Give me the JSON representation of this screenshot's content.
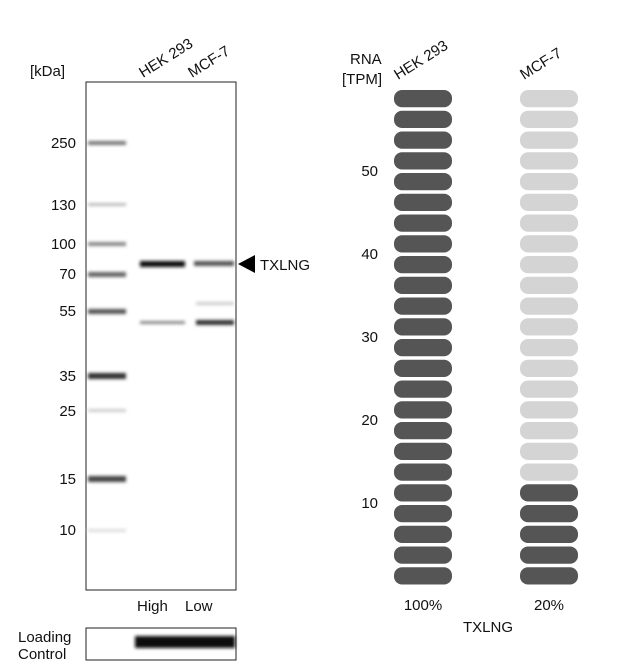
{
  "blot": {
    "unit_label": "[kDa]",
    "lanes": [
      "HEK 293",
      "MCF-7"
    ],
    "markers": [
      "250",
      "130",
      "100",
      "70",
      "55",
      "35",
      "25",
      "15",
      "10"
    ],
    "target": "TXLNG",
    "lane_levels": [
      "High",
      "Low"
    ],
    "loading_control": [
      "Loading",
      "Control"
    ]
  },
  "rna": {
    "axis_label": [
      "RNA",
      "[TPM]"
    ],
    "ylim": [
      0,
      60
    ],
    "yticks": [
      10,
      20,
      30,
      40,
      50
    ],
    "columns": [
      {
        "name": "HEK 293",
        "percent": 100,
        "percent_label": "100%"
      },
      {
        "name": "MCF-7",
        "percent": 20,
        "percent_label": "20%"
      }
    ],
    "gene": "TXLNG"
  }
}
